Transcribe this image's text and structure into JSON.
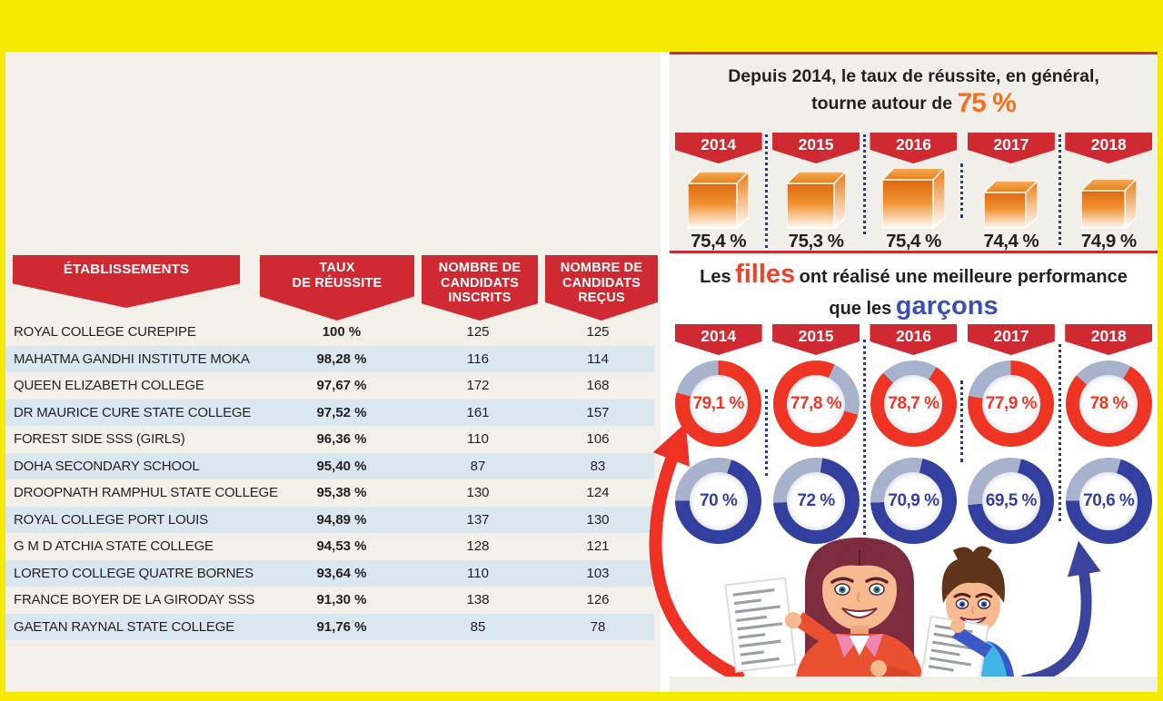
{
  "colors": {
    "frame_yellow": "#f6eb00",
    "banner_red": "#cf2a32",
    "accent_orange": "#f1711d",
    "girls_word": "#e8432b",
    "boys_word": "#3b4fb4",
    "donut_red": "#ee3524",
    "donut_blue": "#333f9e",
    "donut_gray": "#a9b2cd",
    "stripe_blue": "#dbe7ef",
    "beige_bg": "#f2f0e8",
    "dotted_blue": "#2b3990",
    "text_dark": "#231f20"
  },
  "table": {
    "headers": [
      {
        "lines": [
          "ÉTABLISSEMENTS"
        ]
      },
      {
        "lines": [
          "TAUX",
          "DE RÉUSSITE"
        ]
      },
      {
        "lines": [
          "NOMBRE DE",
          "CANDIDATS",
          "INSCRITS"
        ]
      },
      {
        "lines": [
          "NOMBRE DE",
          "CANDIDATS",
          "REÇUS"
        ]
      }
    ],
    "rows": [
      {
        "name": "ROYAL COLLEGE CUREPIPE",
        "rate": "100 %",
        "registered": "125",
        "passed": "125"
      },
      {
        "name": "MAHATMA GANDHI INSTITUTE MOKA",
        "rate": "98,28 %",
        "registered": "116",
        "passed": "114"
      },
      {
        "name": "QUEEN ELIZABETH COLLEGE",
        "rate": "97,67 %",
        "registered": "172",
        "passed": "168"
      },
      {
        "name": "DR MAURICE CURE STATE COLLEGE",
        "rate": "97,52 %",
        "registered": "161",
        "passed": "157"
      },
      {
        "name": "FOREST SIDE SSS (GIRLS)",
        "rate": "96,36 %",
        "registered": "110",
        "passed": "106"
      },
      {
        "name": "DOHA SECONDARY SCHOOL",
        "rate": "95,40 %",
        "registered": "87",
        "passed": "83"
      },
      {
        "name": "DROOPNATH RAMPHUL STATE COLLEGE",
        "rate": "95,38 %",
        "registered": "130",
        "passed": "124"
      },
      {
        "name": "ROYAL COLLEGE PORT LOUIS",
        "rate": "94,89 %",
        "registered": "137",
        "passed": "130"
      },
      {
        "name": "G M D ATCHIA STATE COLLEGE",
        "rate": "94,53 %",
        "registered": "128",
        "passed": "121"
      },
      {
        "name": "LORETO COLLEGE QUATRE BORNES",
        "rate": "93,64 %",
        "registered": "110",
        "passed": "103"
      },
      {
        "name": "FRANCE BOYER DE LA GIRODAY SSS",
        "rate": "91,30 %",
        "registered": "138",
        "passed": "126"
      },
      {
        "name": "GAETAN RAYNAL STATE COLLEGE",
        "rate": "91,76 %",
        "registered": "85",
        "passed": "78"
      }
    ]
  },
  "success_panel": {
    "title_line1": "Depuis 2014, le taux de réussite, en général,",
    "title_line2": "tourne autour de",
    "title_highlight": "75 %",
    "years": [
      "2014",
      "2015",
      "2016",
      "2017",
      "2018"
    ],
    "values": [
      "75,4 %",
      "75,3 %",
      "75,4 %",
      "74,4 %",
      "74,9 %"
    ]
  },
  "gender_panel": {
    "title_part1": "Les",
    "title_girls": "filles",
    "title_part2": "ont réalisé une meilleure performance",
    "title_part3": "que les",
    "title_boys": "garçons",
    "years": [
      "2014",
      "2015",
      "2016",
      "2017",
      "2018"
    ],
    "girls_values": [
      "79,1 %",
      "77,8 %",
      "78,7 %",
      "77,9 %",
      "78 %"
    ],
    "boys_values": [
      "70 %",
      "72 %",
      "70,9 %",
      "69,5 %",
      "70,6 %"
    ]
  },
  "chart_data": [
    {
      "type": "bar",
      "title": "Depuis 2014, le taux de réussite, en général, tourne autour de 75 %",
      "categories": [
        "2014",
        "2015",
        "2016",
        "2017",
        "2018"
      ],
      "values": [
        75.4,
        75.3,
        75.4,
        74.4,
        74.9
      ],
      "unit": "%",
      "marker": "orange-3d-cube"
    },
    {
      "type": "pie",
      "subtype": "donut-grid",
      "title": "Les filles ont réalisé une meilleure performance que les garçons",
      "categories": [
        "2014",
        "2015",
        "2016",
        "2017",
        "2018"
      ],
      "series": [
        {
          "name": "filles",
          "color": "#ee3524",
          "values": [
            79.1,
            77.8,
            78.7,
            77.9,
            78
          ]
        },
        {
          "name": "garçons",
          "color": "#333f9e",
          "values": [
            70,
            72,
            70.9,
            69.5,
            70.6
          ]
        }
      ],
      "unit": "%"
    },
    {
      "type": "table",
      "columns": [
        "ÉTABLISSEMENTS",
        "TAUX DE RÉUSSITE",
        "NOMBRE DE CANDIDATS INSCRITS",
        "NOMBRE DE CANDIDATS REÇUS"
      ],
      "rows": [
        [
          "ROYAL COLLEGE CUREPIPE",
          100,
          125,
          125
        ],
        [
          "MAHATMA GANDHI INSTITUTE MOKA",
          98.28,
          116,
          114
        ],
        [
          "QUEEN ELIZABETH COLLEGE",
          97.67,
          172,
          168
        ],
        [
          "DR MAURICE CURE STATE COLLEGE",
          97.52,
          161,
          157
        ],
        [
          "FOREST SIDE SSS (GIRLS)",
          96.36,
          110,
          106
        ],
        [
          "DOHA SECONDARY SCHOOL",
          95.4,
          87,
          83
        ],
        [
          "DROOPNATH RAMPHUL STATE COLLEGE",
          95.38,
          130,
          124
        ],
        [
          "ROYAL COLLEGE PORT LOUIS",
          94.89,
          137,
          130
        ],
        [
          "G M D ATCHIA STATE COLLEGE",
          94.53,
          128,
          121
        ],
        [
          "LORETO COLLEGE QUATRE BORNES",
          93.64,
          110,
          103
        ],
        [
          "FRANCE BOYER DE LA GIRODAY SSS",
          91.3,
          138,
          126
        ],
        [
          "GAETAN RAYNAL STATE COLLEGE",
          91.76,
          85,
          78
        ]
      ]
    }
  ]
}
